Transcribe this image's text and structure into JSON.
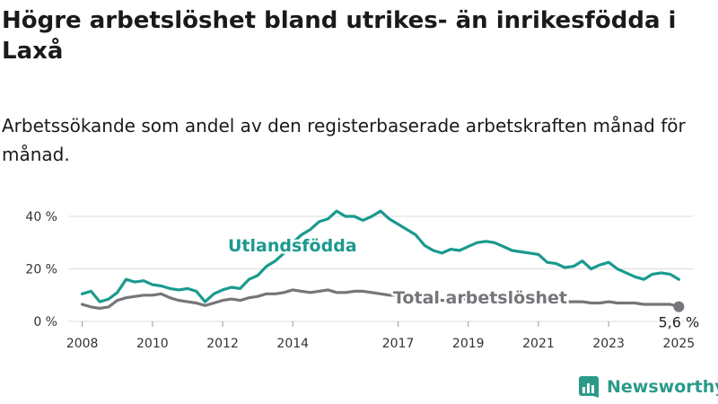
{
  "title": "Högre arbetslöshet bland utrikes- än inrikesfödda i Laxå",
  "subtitle": "Arbetssökande som andel av den registerbaserade arbetskraften månad för månad.",
  "brand": "Newsworthy",
  "colors": {
    "utrikes": "#1a9a8e",
    "total": "#76757a",
    "grid": "#dddddd",
    "text": "#333333"
  },
  "chart_data": {
    "type": "line",
    "ylim": [
      0,
      45
    ],
    "yticks": [
      0,
      20,
      40
    ],
    "ytick_labels": [
      "0 %",
      "20 %",
      "40 %"
    ],
    "xlim": [
      2007.6,
      2025.4
    ],
    "xticks": [
      2008,
      2010,
      2012,
      2014,
      2017,
      2019,
      2021,
      2023,
      2025
    ],
    "xtick_labels": [
      "2008",
      "2010",
      "2012",
      "2014",
      "2017",
      "2019",
      "2021",
      "2023",
      "2025"
    ],
    "grid": true,
    "series": [
      {
        "name": "Utlandsfödda",
        "x": [
          2008.0,
          2008.25,
          2008.5,
          2008.75,
          2009.0,
          2009.25,
          2009.5,
          2009.75,
          2010.0,
          2010.25,
          2010.5,
          2010.75,
          2011.0,
          2011.25,
          2011.5,
          2011.75,
          2012.0,
          2012.25,
          2012.5,
          2012.75,
          2013.0,
          2013.25,
          2013.5,
          2013.75,
          2014.0,
          2014.25,
          2014.5,
          2014.75,
          2015.0,
          2015.25,
          2015.5,
          2015.75,
          2016.0,
          2016.25,
          2016.5,
          2016.75,
          2017.0,
          2017.25,
          2017.5,
          2017.75,
          2018.0,
          2018.25,
          2018.5,
          2018.75,
          2019.0,
          2019.25,
          2019.5,
          2019.75,
          2020.0,
          2020.25,
          2020.5,
          2020.75,
          2021.0,
          2021.25,
          2021.5,
          2021.75,
          2022.0,
          2022.25,
          2022.5,
          2022.75,
          2023.0,
          2023.25,
          2023.5,
          2023.75,
          2024.0,
          2024.25,
          2024.5,
          2024.75,
          2025.0
        ],
        "values": [
          10.5,
          11.5,
          7.5,
          8.5,
          11,
          16,
          15,
          15.5,
          14,
          13.5,
          12.5,
          12,
          12.5,
          11.5,
          7.5,
          10.5,
          12,
          13,
          12.5,
          16,
          17.5,
          21,
          23,
          26,
          30,
          33,
          35,
          38,
          39,
          42,
          40,
          40,
          38.5,
          40,
          42,
          39,
          37,
          35,
          33,
          29,
          27,
          26,
          27.5,
          27,
          28.5,
          30,
          30.5,
          30,
          28.5,
          27,
          26.5,
          26,
          25.5,
          22.5,
          22,
          20.5,
          21,
          23,
          20,
          21.5,
          22.5,
          20,
          18.5,
          17,
          16,
          18,
          18.5,
          18,
          16
        ]
      },
      {
        "name": "Total arbetslöshet",
        "x": [
          2008.0,
          2008.25,
          2008.5,
          2008.75,
          2009.0,
          2009.25,
          2009.5,
          2009.75,
          2010.0,
          2010.25,
          2010.5,
          2010.75,
          2011.0,
          2011.25,
          2011.5,
          2011.75,
          2012.0,
          2012.25,
          2012.5,
          2012.75,
          2013.0,
          2013.25,
          2013.5,
          2013.75,
          2014.0,
          2014.25,
          2014.5,
          2014.75,
          2015.0,
          2015.25,
          2015.5,
          2015.75,
          2016.0,
          2016.25,
          2016.5,
          2016.75,
          2017.0,
          2017.25,
          2017.5,
          2017.75,
          2018.0,
          2018.25,
          2018.5,
          2018.75,
          2019.0,
          2019.25,
          2019.5,
          2019.75,
          2020.0,
          2020.25,
          2020.5,
          2020.75,
          2021.0,
          2021.25,
          2021.5,
          2021.75,
          2022.0,
          2022.25,
          2022.5,
          2022.75,
          2023.0,
          2023.25,
          2023.5,
          2023.75,
          2024.0,
          2024.25,
          2024.5,
          2024.75,
          2025.0
        ],
        "values": [
          6.5,
          5.5,
          5,
          5.5,
          8,
          9,
          9.5,
          10,
          10,
          10.5,
          9,
          8,
          7.5,
          7,
          6,
          7,
          8,
          8.5,
          8,
          9,
          9.5,
          10.5,
          10.5,
          11,
          12,
          11.5,
          11,
          11.5,
          12,
          11,
          11,
          11.5,
          11.5,
          11,
          10.5,
          10,
          10,
          9.5,
          9,
          8.5,
          8.5,
          8,
          8,
          8.5,
          8.5,
          9,
          9,
          8.5,
          8.5,
          8,
          8,
          7.5,
          7.5,
          7.5,
          7.5,
          7.5,
          7.5,
          7.5,
          7,
          7,
          7.5,
          7,
          7,
          7,
          6.5,
          6.5,
          6.5,
          6.5,
          5.6
        ]
      }
    ],
    "annotations": [
      {
        "series": "Utlandsfödda",
        "text": "Utlandsfödda"
      },
      {
        "series": "Total arbetslöshet",
        "text": "Total arbetslöshet"
      },
      {
        "text": "5,6 %",
        "x": 2025.0,
        "y": 5.6
      }
    ]
  }
}
